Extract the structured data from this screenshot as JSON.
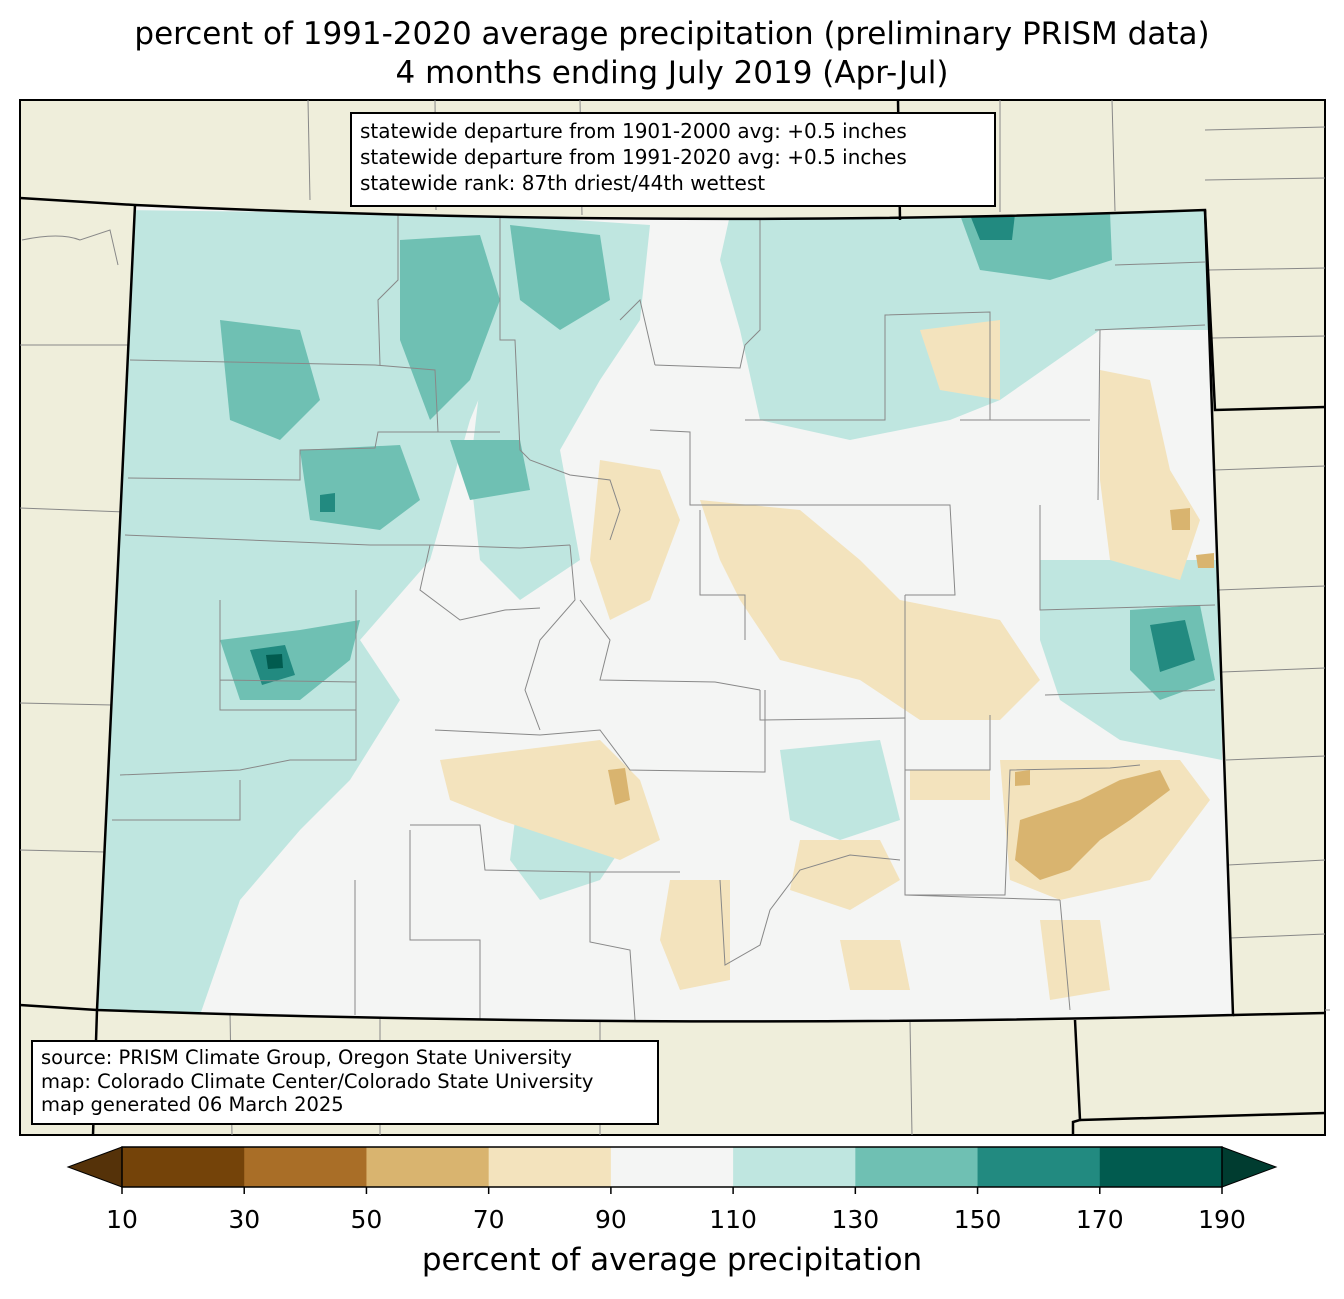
{
  "title": {
    "line1": "percent of 1991-2020 average precipitation (preliminary PRISM data)",
    "line2": "4 months ending July 2019 (Apr-Jul)"
  },
  "stats_box": {
    "line1": "statewide departure from 1901-2000 avg: +0.5 inches",
    "line2": "statewide departure from 1991-2020 avg: +0.5 inches",
    "line3": "statewide rank: 87th driest/44th wettest"
  },
  "source_box": {
    "line1": "source: PRISM Climate Group, Oregon State University",
    "line2": "map: Colorado Climate Center/Colorado State University",
    "line3": "map generated 06 March 2025"
  },
  "colorbar": {
    "label": "percent of average precipitation",
    "ticks": [
      "10",
      "30",
      "50",
      "70",
      "90",
      "110",
      "130",
      "150",
      "170",
      "190"
    ],
    "colors": [
      "#744309",
      "#a96e27",
      "#d9b46f",
      "#f3e3bd",
      "#f4f5f4",
      "#bfe6e0",
      "#6fc0b3",
      "#228a80",
      "#015b4f"
    ],
    "under_color": "#553209",
    "over_color": "#003c30"
  },
  "map": {
    "background_color": "#efeedb",
    "state_fill": "#f4f5f4"
  }
}
